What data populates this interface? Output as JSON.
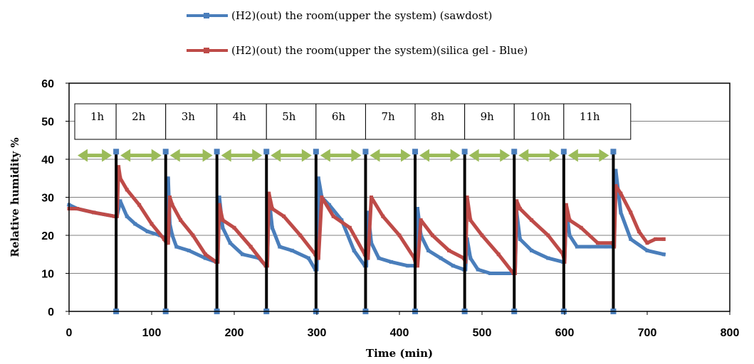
{
  "chart_data": {
    "type": "line",
    "title": "",
    "xlabel": "Time (min)",
    "ylabel": "Relative humidity %",
    "xlim": [
      0,
      800
    ],
    "ylim": [
      0,
      60
    ],
    "xticks": [
      0,
      100,
      200,
      300,
      400,
      500,
      600,
      700,
      800
    ],
    "yticks": [
      0,
      10,
      20,
      30,
      40,
      50,
      60
    ],
    "grid": "horizontal",
    "legend_position": "top-center",
    "series": [
      {
        "name": "(H2)(out) the room(upper  the system) (sawdost)",
        "color": "#4a7ebb",
        "x": [
          0,
          10,
          30,
          55,
          58,
          62,
          70,
          80,
          95,
          110,
          118,
          120,
          122,
          125,
          130,
          145,
          165,
          178,
          180,
          182,
          186,
          195,
          210,
          230,
          238,
          240,
          242,
          246,
          255,
          270,
          290,
          298,
          300,
          302,
          306,
          315,
          330,
          345,
          358,
          360,
          362,
          366,
          375,
          390,
          410,
          418,
          420,
          422,
          426,
          435,
          450,
          465,
          478,
          480,
          482,
          486,
          495,
          510,
          530,
          538,
          540,
          542,
          546,
          560,
          580,
          598,
          600,
          602,
          606,
          615,
          630,
          650,
          658,
          660,
          662,
          668,
          680,
          700,
          720
        ],
        "y": [
          28,
          27,
          26,
          25,
          25,
          29,
          25,
          23,
          21,
          20,
          19,
          35,
          23,
          20,
          17,
          16,
          14,
          13,
          13,
          30,
          22,
          18,
          15,
          14,
          12,
          12,
          30,
          22,
          17,
          16,
          14,
          11,
          11,
          35,
          30,
          28,
          24,
          16,
          12,
          12,
          26,
          18,
          14,
          13,
          12,
          12,
          12,
          27,
          20,
          16,
          14,
          12,
          11,
          11,
          19,
          14,
          11,
          10,
          10,
          10,
          10,
          26,
          19,
          16,
          14,
          13,
          13,
          27,
          20,
          17,
          17,
          17,
          17,
          17,
          37,
          26,
          19,
          16,
          15
        ]
      },
      {
        "name": "(H2)(out) the room(upper the system)(silica gel - Blue)",
        "color": "#be4b48",
        "x": [
          0,
          10,
          30,
          55,
          58,
          60,
          62,
          70,
          85,
          100,
          115,
          118,
          120,
          122,
          125,
          135,
          150,
          165,
          178,
          180,
          182,
          186,
          200,
          220,
          238,
          240,
          242,
          246,
          260,
          280,
          298,
          300,
          302,
          306,
          320,
          340,
          358,
          360,
          362,
          366,
          380,
          400,
          418,
          420,
          422,
          426,
          440,
          460,
          478,
          480,
          482,
          486,
          500,
          520,
          538,
          540,
          542,
          546,
          560,
          580,
          598,
          600,
          602,
          606,
          620,
          640,
          658,
          660,
          662,
          668,
          680,
          690,
          700,
          710,
          720
        ],
        "y": [
          27,
          27,
          26,
          25,
          25,
          38,
          35,
          32,
          28,
          23,
          19,
          18,
          18,
          30,
          28,
          24,
          20,
          15,
          13,
          13,
          28,
          24,
          22,
          17,
          12,
          12,
          31,
          27,
          25,
          20,
          15,
          14,
          14,
          30,
          25,
          22,
          15,
          14,
          14,
          30,
          25,
          20,
          14,
          12,
          12,
          24,
          20,
          16,
          14,
          13,
          30,
          24,
          20,
          15,
          10,
          10,
          29,
          27,
          24,
          20,
          15,
          13,
          28,
          24,
          22,
          18,
          18,
          17,
          33,
          31,
          26,
          21,
          18,
          19,
          19
        ]
      }
    ],
    "event_marks": [
      0,
      57,
      117,
      179,
      239,
      299,
      359,
      419,
      479,
      539,
      599,
      659
    ],
    "hour_boxes": [
      {
        "label": "1h",
        "from": 0,
        "to": 57
      },
      {
        "label": "2h",
        "from": 57,
        "to": 117
      },
      {
        "label": "3h",
        "from": 117,
        "to": 179
      },
      {
        "label": "4h",
        "from": 179,
        "to": 239
      },
      {
        "label": "5h",
        "from": 239,
        "to": 299
      },
      {
        "label": "6h",
        "from": 299,
        "to": 359
      },
      {
        "label": "7h",
        "from": 359,
        "to": 419
      },
      {
        "label": "8h",
        "from": 419,
        "to": 479
      },
      {
        "label": "9h",
        "from": 479,
        "to": 539
      },
      {
        "label": "10h",
        "from": 539,
        "to": 599
      },
      {
        "label": "11h",
        "from": 599,
        "to": 680
      }
    ],
    "arrow_color": "#9bbb59",
    "event_line_color": "#000000"
  }
}
